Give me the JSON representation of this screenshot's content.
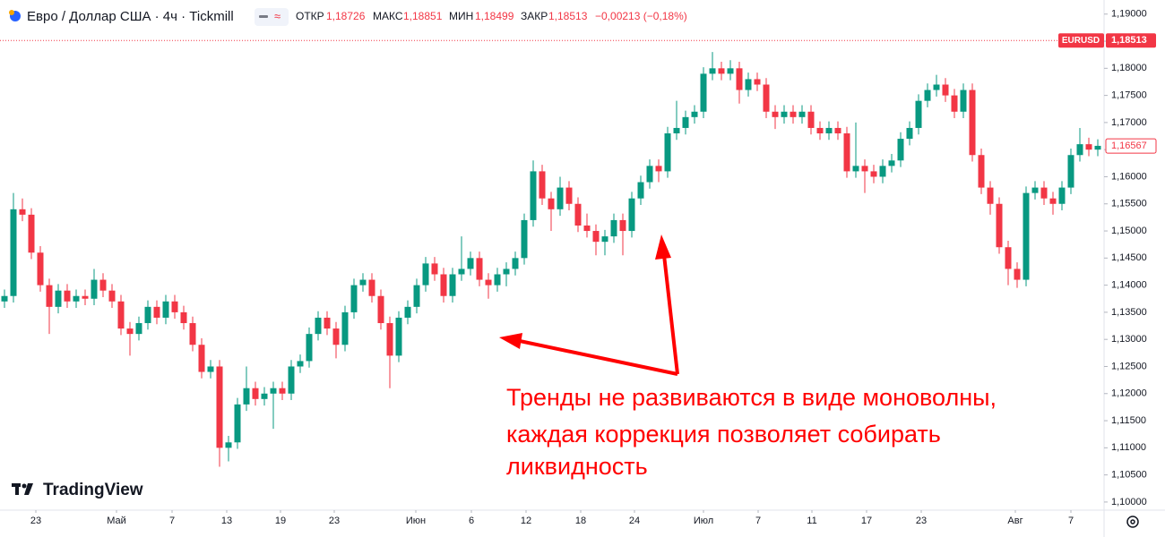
{
  "header": {
    "title": "Евро / Доллар США · 4ч · Tickmill",
    "open_label": "ОТКР",
    "open": "1,18726",
    "high_label": "МАКС",
    "high": "1,18851",
    "low_label": "МИН",
    "low": "1,18499",
    "close_label": "ЗАКР",
    "close": "1,18513",
    "change": "−0,00213 (−0,18%)"
  },
  "logo": "TradingView",
  "chart_data": {
    "type": "candlestick",
    "up_color": "#089981",
    "down_color": "#f23645",
    "open": [
      1.137,
      1.138,
      1.154,
      1.153,
      1.146,
      1.14,
      1.136,
      1.139,
      1.137,
      1.138,
      1.1375,
      1.141,
      1.139,
      1.137,
      1.132,
      1.131,
      1.133,
      1.136,
      1.134,
      1.137,
      1.135,
      1.133,
      1.129,
      1.124,
      1.125,
      1.11,
      1.111,
      1.118,
      1.121,
      1.119,
      1.12,
      1.121,
      1.12,
      1.125,
      1.126,
      1.131,
      1.134,
      1.132,
      1.129,
      1.135,
      1.14,
      1.141,
      1.138,
      1.133,
      1.127,
      1.134,
      1.136,
      1.14,
      1.144,
      1.142,
      1.138,
      1.142,
      1.143,
      1.145,
      1.141,
      1.14,
      1.142,
      1.143,
      1.145,
      1.152,
      1.161,
      1.156,
      1.154,
      1.158,
      1.155,
      1.151,
      1.15,
      1.148,
      1.149,
      1.152,
      1.15,
      1.156,
      1.159,
      1.162,
      1.161,
      1.168,
      1.169,
      1.171,
      1.172,
      1.179,
      1.18,
      1.179,
      1.18,
      1.176,
      1.178,
      1.177,
      1.172,
      1.171,
      1.172,
      1.171,
      1.172,
      1.169,
      1.168,
      1.169,
      1.168,
      1.161,
      1.162,
      1.161,
      1.16,
      1.162,
      1.163,
      1.167,
      1.169,
      1.174,
      1.176,
      1.177,
      1.175,
      1.172,
      1.176,
      1.164,
      1.158,
      1.155,
      1.147,
      1.143,
      1.141,
      1.157,
      1.158,
      1.156,
      1.155,
      1.158,
      1.164,
      1.166,
      1.165
    ],
    "high": [
      1.1392,
      1.157,
      1.156,
      1.1542,
      1.1472,
      1.1412,
      1.1402,
      1.1402,
      1.1392,
      1.1392,
      1.143,
      1.1422,
      1.1402,
      1.1382,
      1.1332,
      1.1342,
      1.1372,
      1.1372,
      1.1382,
      1.1382,
      1.1362,
      1.1342,
      1.1302,
      1.1262,
      1.1262,
      1.1122,
      1.1192,
      1.125,
      1.1222,
      1.1212,
      1.1222,
      1.1222,
      1.1262,
      1.1272,
      1.1322,
      1.1352,
      1.1352,
      1.1332,
      1.1362,
      1.1412,
      1.1422,
      1.1422,
      1.1392,
      1.1342,
      1.1352,
      1.1372,
      1.1412,
      1.1452,
      1.1452,
      1.1432,
      1.1432,
      1.149,
      1.1462,
      1.1462,
      1.1422,
      1.1432,
      1.1442,
      1.1462,
      1.1532,
      1.163,
      1.1622,
      1.1572,
      1.16,
      1.1592,
      1.1562,
      1.1532,
      1.1512,
      1.1502,
      1.1532,
      1.1532,
      1.1572,
      1.1602,
      1.1632,
      1.1632,
      1.1692,
      1.174,
      1.1722,
      1.1732,
      1.1802,
      1.183,
      1.1812,
      1.1815,
      1.1812,
      1.1792,
      1.1792,
      1.1782,
      1.1732,
      1.1732,
      1.1732,
      1.1732,
      1.1732,
      1.1702,
      1.1702,
      1.1702,
      1.1692,
      1.17,
      1.1632,
      1.1622,
      1.1632,
      1.1642,
      1.1682,
      1.1702,
      1.1752,
      1.1772,
      1.1788,
      1.1782,
      1.1762,
      1.1772,
      1.1772,
      1.1652,
      1.1592,
      1.1562,
      1.1482,
      1.1442,
      1.1582,
      1.1592,
      1.1592,
      1.1572,
      1.1592,
      1.1652,
      1.169,
      1.1672,
      1.1669
    ],
    "low": [
      1.1358,
      1.1368,
      1.1518,
      1.1448,
      1.1388,
      1.131,
      1.1348,
      1.1358,
      1.1358,
      1.1363,
      1.1363,
      1.1378,
      1.1358,
      1.1308,
      1.127,
      1.1298,
      1.1318,
      1.1328,
      1.1328,
      1.1338,
      1.1318,
      1.1278,
      1.1228,
      1.1228,
      1.1065,
      1.1075,
      1.1098,
      1.1168,
      1.1178,
      1.1178,
      1.1135,
      1.1188,
      1.1188,
      1.1238,
      1.1248,
      1.1298,
      1.1308,
      1.1265,
      1.1278,
      1.1338,
      1.1388,
      1.1368,
      1.1318,
      1.121,
      1.1258,
      1.1328,
      1.1348,
      1.1388,
      1.1408,
      1.1368,
      1.1368,
      1.1408,
      1.1418,
      1.1398,
      1.1375,
      1.1388,
      1.1398,
      1.1418,
      1.1438,
      1.1508,
      1.1548,
      1.15,
      1.1528,
      1.1538,
      1.1498,
      1.1488,
      1.1455,
      1.1455,
      1.1478,
      1.1455,
      1.1488,
      1.1548,
      1.1578,
      1.159,
      1.1598,
      1.1668,
      1.1678,
      1.1698,
      1.1708,
      1.1778,
      1.1778,
      1.1778,
      1.1735,
      1.1748,
      1.1758,
      1.1708,
      1.1688,
      1.1698,
      1.1698,
      1.1698,
      1.1678,
      1.1668,
      1.1668,
      1.1668,
      1.1598,
      1.1598,
      1.157,
      1.1588,
      1.1588,
      1.1608,
      1.1618,
      1.1658,
      1.1678,
      1.1728,
      1.1748,
      1.1738,
      1.1708,
      1.1708,
      1.1628,
      1.1568,
      1.153,
      1.1458,
      1.14,
      1.1395,
      1.1398,
      1.1558,
      1.1548,
      1.153,
      1.1538,
      1.1568,
      1.1628,
      1.1638,
      1.1638
    ],
    "close": [
      1.138,
      1.154,
      1.153,
      1.146,
      1.14,
      1.136,
      1.139,
      1.137,
      1.138,
      1.1375,
      1.141,
      1.139,
      1.137,
      1.132,
      1.131,
      1.133,
      1.136,
      1.134,
      1.137,
      1.135,
      1.133,
      1.129,
      1.124,
      1.125,
      1.11,
      1.111,
      1.118,
      1.121,
      1.119,
      1.12,
      1.121,
      1.12,
      1.125,
      1.126,
      1.131,
      1.134,
      1.132,
      1.129,
      1.135,
      1.14,
      1.141,
      1.138,
      1.133,
      1.127,
      1.134,
      1.136,
      1.14,
      1.144,
      1.142,
      1.138,
      1.142,
      1.143,
      1.145,
      1.141,
      1.14,
      1.142,
      1.143,
      1.145,
      1.152,
      1.161,
      1.156,
      1.154,
      1.158,
      1.155,
      1.151,
      1.15,
      1.148,
      1.149,
      1.152,
      1.15,
      1.156,
      1.159,
      1.162,
      1.161,
      1.168,
      1.169,
      1.171,
      1.172,
      1.179,
      1.18,
      1.179,
      1.18,
      1.176,
      1.178,
      1.177,
      1.172,
      1.171,
      1.172,
      1.171,
      1.172,
      1.169,
      1.168,
      1.169,
      1.168,
      1.161,
      1.162,
      1.161,
      1.16,
      1.162,
      1.163,
      1.167,
      1.169,
      1.174,
      1.176,
      1.177,
      1.175,
      1.172,
      1.176,
      1.164,
      1.158,
      1.155,
      1.147,
      1.143,
      1.141,
      1.157,
      1.158,
      1.156,
      1.155,
      1.158,
      1.164,
      1.166,
      1.165,
      1.1657
    ],
    "xlim": [
      0,
      123.2
    ],
    "xticks": [
      {
        "value": 4,
        "label": "23"
      },
      {
        "value": 13,
        "label": "Май"
      },
      {
        "value": 19.2,
        "label": "7"
      },
      {
        "value": 25.3,
        "label": "13"
      },
      {
        "value": 31.3,
        "label": "19"
      },
      {
        "value": 37.3,
        "label": "23"
      },
      {
        "value": 46.4,
        "label": "Июн"
      },
      {
        "value": 52.6,
        "label": "6"
      },
      {
        "value": 58.7,
        "label": "12"
      },
      {
        "value": 64.8,
        "label": "18"
      },
      {
        "value": 70.8,
        "label": "24"
      },
      {
        "value": 78.5,
        "label": "Июл"
      },
      {
        "value": 84.6,
        "label": "7"
      },
      {
        "value": 90.6,
        "label": "11"
      },
      {
        "value": 96.7,
        "label": "17"
      },
      {
        "value": 102.8,
        "label": "23"
      },
      {
        "value": 113.3,
        "label": "Авг"
      },
      {
        "value": 119.5,
        "label": "7"
      }
    ],
    "ylim": [
      1.0985,
      1.1926
    ],
    "yticks": [
      {
        "value": 1.1,
        "label": "1,10000"
      },
      {
        "value": 1.105,
        "label": "1,10500"
      },
      {
        "value": 1.11,
        "label": "1,11000"
      },
      {
        "value": 1.115,
        "label": "1,11500"
      },
      {
        "value": 1.12,
        "label": "1,12000"
      },
      {
        "value": 1.125,
        "label": "1,12500"
      },
      {
        "value": 1.13,
        "label": "1,13000"
      },
      {
        "value": 1.135,
        "label": "1,13500"
      },
      {
        "value": 1.14,
        "label": "1,14000"
      },
      {
        "value": 1.145,
        "label": "1,14500"
      },
      {
        "value": 1.15,
        "label": "1,15000"
      },
      {
        "value": 1.155,
        "label": "1,15500"
      },
      {
        "value": 1.16,
        "label": "1,16000"
      },
      {
        "value": 1.165,
        "label": "1,16500"
      },
      {
        "value": 1.17,
        "label": "1,17000"
      },
      {
        "value": 1.175,
        "label": "1,17500"
      },
      {
        "value": 1.18,
        "label": "1,18000"
      },
      {
        "value": 1.185,
        "label": "1,18500"
      },
      {
        "value": 1.19,
        "label": "1,19000"
      }
    ],
    "grid": false,
    "symbol": "EURUSD",
    "last_price": {
      "value": 1.18513,
      "label": "1,18513"
    },
    "marker_price": {
      "value": 1.16567,
      "label": "1,16567"
    },
    "annotation": [
      "Тренды не развиваются в виде моноволны,",
      "каждая коррекция позволяет собирать",
      "ликвидность"
    ]
  }
}
